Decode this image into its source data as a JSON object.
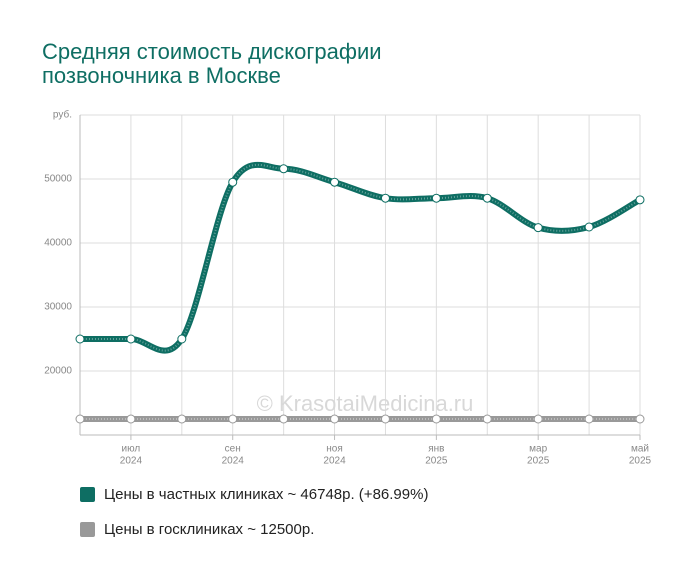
{
  "chart_data": {
    "type": "line",
    "title": [
      "Средняя стоимость дискографии",
      "позвоночника в Москве"
    ],
    "watermark": "© KrasotaiMedicina.ru",
    "categories": [
      null,
      {
        "month": "июл",
        "year": "2024"
      },
      null,
      {
        "month": "сен",
        "year": "2024"
      },
      null,
      {
        "month": "ноя",
        "year": "2024"
      },
      null,
      {
        "month": "янв",
        "year": "2025"
      },
      null,
      {
        "month": "мар",
        "year": "2025"
      },
      null,
      {
        "month": "май",
        "year": "2025"
      }
    ],
    "series": [
      {
        "name": "Цены в частных клиниках ~ 46748р. (+86.99%)",
        "color": "#0e6e63",
        "values": [
          25000,
          25000,
          25000,
          49500,
          51600,
          49500,
          47000,
          47000,
          47000,
          42400,
          42500,
          46748
        ]
      },
      {
        "name": "Цены в госклиниках ~ 12500р.",
        "color": "#999999",
        "values": [
          12500,
          12500,
          12500,
          12500,
          12500,
          12500,
          12500,
          12500,
          12500,
          12500,
          12500,
          12500
        ]
      }
    ],
    "ylim": [
      10000,
      60000
    ],
    "yticks": [
      20000,
      30000,
      40000,
      50000,
      {
        "value": 60000,
        "label": "руб."
      }
    ],
    "grid": true
  }
}
